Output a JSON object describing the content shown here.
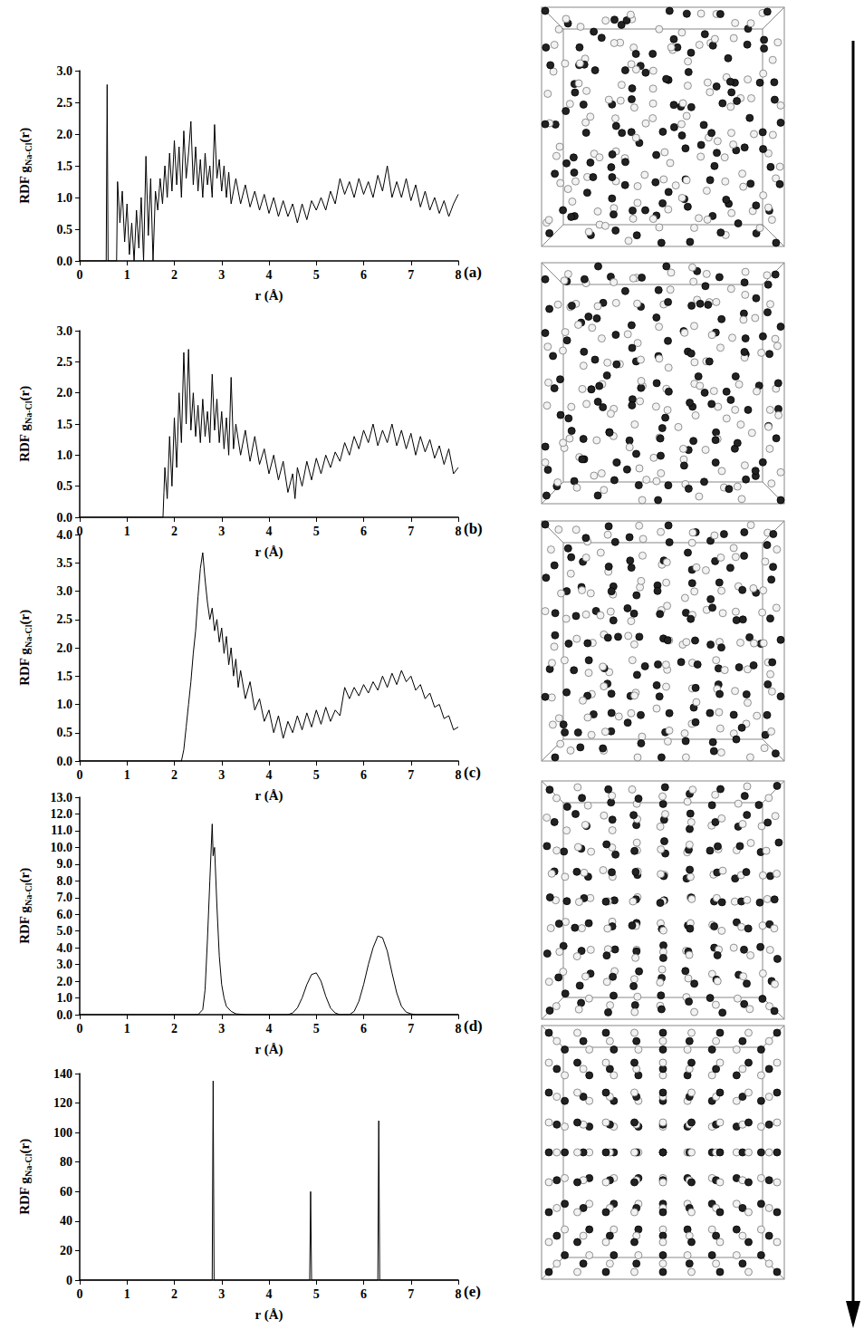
{
  "chart_data": [
    {
      "type": "line",
      "label": "(a)",
      "xlabel": "r (Å)",
      "ylabel": "RDF gNa-Cl(r)",
      "ylabel_sub": "Na-Cl",
      "color": "#000000",
      "grid": false,
      "xlim": [
        0,
        8
      ],
      "xticks": [
        0,
        1,
        2,
        3,
        4,
        5,
        6,
        7,
        8
      ],
      "ylim": [
        0,
        3
      ],
      "yticks": [
        {
          "value": 0,
          "label": "0.0"
        },
        {
          "value": 0.5,
          "label": "0.5"
        },
        {
          "value": 1,
          "label": "1.0"
        },
        {
          "value": 1.5,
          "label": "1.5"
        },
        {
          "value": 2,
          "label": "2.0"
        },
        {
          "value": 2.5,
          "label": "2.5"
        },
        {
          "value": 3,
          "label": "3.0"
        }
      ],
      "x": [
        0,
        0.5,
        0.56,
        0.58,
        0.6,
        0.78,
        0.8,
        0.85,
        0.9,
        0.95,
        1.0,
        1.05,
        1.1,
        1.15,
        1.2,
        1.25,
        1.3,
        1.35,
        1.4,
        1.45,
        1.5,
        1.55,
        1.6,
        1.65,
        1.7,
        1.75,
        1.8,
        1.85,
        1.9,
        1.95,
        2.0,
        2.05,
        2.1,
        2.15,
        2.2,
        2.25,
        2.3,
        2.35,
        2.4,
        2.45,
        2.5,
        2.55,
        2.6,
        2.65,
        2.7,
        2.75,
        2.8,
        2.85,
        2.9,
        2.95,
        3.0,
        3.05,
        3.1,
        3.15,
        3.2,
        3.3,
        3.4,
        3.5,
        3.6,
        3.7,
        3.8,
        3.9,
        4.0,
        4.1,
        4.2,
        4.3,
        4.4,
        4.5,
        4.6,
        4.7,
        4.8,
        4.9,
        5.0,
        5.1,
        5.2,
        5.3,
        5.4,
        5.5,
        5.6,
        5.7,
        5.8,
        5.9,
        6.0,
        6.1,
        6.2,
        6.3,
        6.4,
        6.5,
        6.6,
        6.7,
        6.8,
        6.9,
        7.0,
        7.1,
        7.2,
        7.3,
        7.4,
        7.5,
        7.6,
        7.7,
        7.8,
        7.9,
        8.0
      ],
      "values": [
        0,
        0,
        0,
        2.78,
        0,
        0,
        1.25,
        0.6,
        1.1,
        0.3,
        0.9,
        0.1,
        0.6,
        0,
        0.8,
        0.2,
        1.0,
        0,
        1.65,
        0.4,
        1.3,
        0,
        1.1,
        0.8,
        1.3,
        0.9,
        1.5,
        1.0,
        1.7,
        1.1,
        1.9,
        1.2,
        1.8,
        1.0,
        2.05,
        1.3,
        1.7,
        2.2,
        1.2,
        1.8,
        1.1,
        1.6,
        1.0,
        1.7,
        1.2,
        1.5,
        1.0,
        2.15,
        1.3,
        1.6,
        1.1,
        1.5,
        1.0,
        1.4,
        0.9,
        1.3,
        0.9,
        1.2,
        0.85,
        1.1,
        0.8,
        1.05,
        0.75,
        1.0,
        0.7,
        0.95,
        0.7,
        0.9,
        0.6,
        0.9,
        0.65,
        0.95,
        0.8,
        1.0,
        0.8,
        1.1,
        0.9,
        1.3,
        1.05,
        1.25,
        1.0,
        1.3,
        1.05,
        1.25,
        1.0,
        1.35,
        1.1,
        1.5,
        1.0,
        1.25,
        1.0,
        1.3,
        0.95,
        1.2,
        0.85,
        1.1,
        0.8,
        1.0,
        0.75,
        0.95,
        0.7,
        0.9,
        1.05
      ]
    },
    {
      "type": "line",
      "label": "(b)",
      "xlabel": "r (Å)",
      "ylabel": "RDF gNa-Cl(r)",
      "ylabel_sub": "Na-Cl",
      "color": "#000000",
      "grid": false,
      "xlim": [
        0,
        8
      ],
      "xticks": [
        0,
        1,
        2,
        3,
        4,
        5,
        6,
        7,
        8
      ],
      "ylim": [
        0,
        3
      ],
      "yticks": [
        {
          "value": 0,
          "label": "0.0"
        },
        {
          "value": 0.5,
          "label": "0.5"
        },
        {
          "value": 1,
          "label": "1.0"
        },
        {
          "value": 1.5,
          "label": "1.5"
        },
        {
          "value": 2,
          "label": "2.0"
        },
        {
          "value": 2.5,
          "label": "2.5"
        },
        {
          "value": 3,
          "label": "3.0"
        }
      ],
      "x": [
        0,
        1.7,
        1.76,
        1.78,
        1.8,
        1.85,
        1.9,
        1.95,
        2.0,
        2.05,
        2.1,
        2.15,
        2.2,
        2.25,
        2.3,
        2.35,
        2.4,
        2.45,
        2.5,
        2.55,
        2.6,
        2.65,
        2.7,
        2.75,
        2.8,
        2.85,
        2.9,
        2.95,
        3.0,
        3.05,
        3.1,
        3.15,
        3.2,
        3.25,
        3.3,
        3.4,
        3.5,
        3.6,
        3.7,
        3.8,
        3.9,
        4.0,
        4.1,
        4.2,
        4.3,
        4.4,
        4.5,
        4.55,
        4.6,
        4.7,
        4.8,
        4.9,
        5.0,
        5.1,
        5.2,
        5.3,
        5.4,
        5.5,
        5.6,
        5.7,
        5.8,
        5.9,
        6.0,
        6.1,
        6.2,
        6.3,
        6.4,
        6.5,
        6.6,
        6.7,
        6.8,
        6.9,
        7.0,
        7.1,
        7.2,
        7.3,
        7.4,
        7.5,
        7.6,
        7.7,
        7.8,
        7.9,
        8.0
      ],
      "values": [
        0,
        0,
        0,
        0.4,
        0.8,
        0.3,
        1.3,
        0.5,
        1.6,
        0.8,
        2.0,
        1.2,
        2.65,
        1.5,
        2.7,
        1.4,
        2.0,
        1.3,
        1.8,
        1.2,
        1.9,
        1.3,
        1.7,
        1.2,
        2.3,
        1.4,
        1.9,
        1.2,
        1.7,
        1.1,
        1.6,
        1.0,
        2.25,
        1.1,
        1.5,
        1.0,
        1.4,
        0.9,
        1.3,
        0.85,
        1.1,
        0.7,
        1.0,
        0.6,
        0.9,
        0.4,
        0.7,
        0.3,
        0.8,
        0.5,
        0.9,
        0.6,
        0.95,
        0.7,
        1.0,
        0.8,
        1.05,
        0.9,
        1.2,
        1.0,
        1.3,
        1.1,
        1.4,
        1.2,
        1.5,
        1.15,
        1.4,
        1.2,
        1.5,
        1.15,
        1.4,
        1.1,
        1.35,
        1.0,
        1.3,
        1.05,
        1.25,
        0.95,
        1.15,
        0.85,
        1.1,
        0.7,
        0.8
      ]
    },
    {
      "type": "line",
      "label": "(c)",
      "xlabel": "r (Å)",
      "ylabel": "RDF gNa-Cl(r)",
      "ylabel_sub": "Na-Cl",
      "color": "#000000",
      "grid": false,
      "xlim": [
        0,
        8
      ],
      "xticks": [
        0,
        1,
        2,
        3,
        4,
        5,
        6,
        7,
        8
      ],
      "ylim": [
        0,
        4
      ],
      "yticks": [
        {
          "value": 0,
          "label": "0.0"
        },
        {
          "value": 0.5,
          "label": "0.5"
        },
        {
          "value": 1,
          "label": "1.0"
        },
        {
          "value": 1.5,
          "label": "1.5"
        },
        {
          "value": 2,
          "label": "2.0"
        },
        {
          "value": 2.5,
          "label": "2.5"
        },
        {
          "value": 3,
          "label": "3.0"
        },
        {
          "value": 3.5,
          "label": "3.5"
        },
        {
          "value": 4,
          "label": "4.0"
        }
      ],
      "x": [
        0,
        2.15,
        2.2,
        2.25,
        2.3,
        2.35,
        2.4,
        2.45,
        2.5,
        2.55,
        2.6,
        2.65,
        2.7,
        2.75,
        2.8,
        2.85,
        2.9,
        2.95,
        3.0,
        3.05,
        3.1,
        3.15,
        3.2,
        3.25,
        3.3,
        3.35,
        3.4,
        3.5,
        3.6,
        3.7,
        3.8,
        3.9,
        4.0,
        4.1,
        4.2,
        4.3,
        4.4,
        4.5,
        4.6,
        4.7,
        4.8,
        4.9,
        5.0,
        5.1,
        5.2,
        5.3,
        5.4,
        5.5,
        5.6,
        5.7,
        5.8,
        5.9,
        6.0,
        6.1,
        6.2,
        6.3,
        6.4,
        6.5,
        6.6,
        6.7,
        6.8,
        6.9,
        7.0,
        7.1,
        7.2,
        7.3,
        7.4,
        7.5,
        7.6,
        7.7,
        7.8,
        7.9,
        8.0
      ],
      "values": [
        0,
        0,
        0.2,
        0.6,
        1.0,
        1.4,
        1.9,
        2.3,
        2.9,
        3.4,
        3.68,
        3.2,
        2.8,
        2.5,
        2.7,
        2.3,
        2.5,
        2.1,
        2.35,
        1.9,
        2.2,
        1.7,
        2.0,
        1.5,
        1.8,
        1.3,
        1.6,
        1.1,
        1.4,
        0.9,
        1.1,
        0.7,
        0.9,
        0.5,
        0.8,
        0.4,
        0.7,
        0.5,
        0.8,
        0.55,
        0.85,
        0.6,
        0.9,
        0.65,
        0.95,
        0.7,
        0.9,
        0.8,
        1.3,
        1.1,
        1.3,
        1.15,
        1.35,
        1.2,
        1.4,
        1.25,
        1.5,
        1.3,
        1.55,
        1.35,
        1.6,
        1.4,
        1.5,
        1.25,
        1.35,
        1.1,
        1.2,
        0.95,
        1.0,
        0.75,
        0.8,
        0.55,
        0.6
      ]
    },
    {
      "type": "line",
      "label": "(d)",
      "xlabel": "r (Å)",
      "ylabel": "RDF gNa-Cl(r)",
      "ylabel_sub": "Na-Cl",
      "color": "#000000",
      "grid": false,
      "xlim": [
        0,
        8
      ],
      "xticks": [
        0,
        1,
        2,
        3,
        4,
        5,
        6,
        7,
        8
      ],
      "ylim": [
        0,
        13
      ],
      "yticks": [
        {
          "value": 0,
          "label": "0.0"
        },
        {
          "value": 1,
          "label": "1.0"
        },
        {
          "value": 2,
          "label": "2.0"
        },
        {
          "value": 3,
          "label": "3.0"
        },
        {
          "value": 4,
          "label": "4.0"
        },
        {
          "value": 5,
          "label": "5.0"
        },
        {
          "value": 6,
          "label": "6.0"
        },
        {
          "value": 7,
          "label": "7.0"
        },
        {
          "value": 8,
          "label": "8.0"
        },
        {
          "value": 9,
          "label": "9.0"
        },
        {
          "value": 10,
          "label": "10.0"
        },
        {
          "value": 11,
          "label": "11.0"
        },
        {
          "value": 12,
          "label": "12.0"
        },
        {
          "value": 13,
          "label": "13.0"
        }
      ],
      "x": [
        0,
        2.5,
        2.6,
        2.65,
        2.7,
        2.75,
        2.8,
        2.82,
        2.85,
        2.9,
        2.95,
        3.0,
        3.05,
        3.1,
        3.2,
        3.3,
        3.5,
        4.4,
        4.5,
        4.6,
        4.7,
        4.8,
        4.9,
        5.0,
        5.1,
        5.2,
        5.3,
        5.4,
        5.5,
        5.7,
        5.8,
        5.9,
        6.0,
        6.1,
        6.2,
        6.3,
        6.4,
        6.5,
        6.6,
        6.7,
        6.8,
        6.9,
        7.0,
        7.1,
        8.0
      ],
      "values": [
        0,
        0,
        0.3,
        1.5,
        4.5,
        8.0,
        11.4,
        9.5,
        10.0,
        6.5,
        3.5,
        1.8,
        1.0,
        0.5,
        0.2,
        0.05,
        0,
        0,
        0.1,
        0.4,
        1.0,
        1.8,
        2.4,
        2.5,
        2.0,
        1.1,
        0.4,
        0.1,
        0,
        0,
        0.2,
        0.8,
        1.8,
        3.0,
        4.0,
        4.7,
        4.6,
        3.8,
        2.5,
        1.3,
        0.5,
        0.15,
        0.05,
        0,
        0
      ]
    },
    {
      "type": "line",
      "label": "(e)",
      "xlabel": "r (Å)",
      "ylabel": "RDF gNa-Cl(r)",
      "ylabel_sub": "Na-Cl",
      "color": "#000000",
      "grid": false,
      "xlim": [
        0,
        8
      ],
      "xticks": [
        0,
        1,
        2,
        3,
        4,
        5,
        6,
        7,
        8
      ],
      "ylim": [
        0,
        140
      ],
      "yticks": [
        0,
        20,
        40,
        60,
        80,
        100,
        120,
        140
      ],
      "x": [
        0,
        2.8,
        2.82,
        2.84,
        4.86,
        4.88,
        4.9,
        6.3,
        6.32,
        6.34,
        8.0
      ],
      "values": [
        0,
        0,
        135,
        0,
        0,
        60,
        0,
        0,
        108,
        0,
        0
      ]
    }
  ]
}
